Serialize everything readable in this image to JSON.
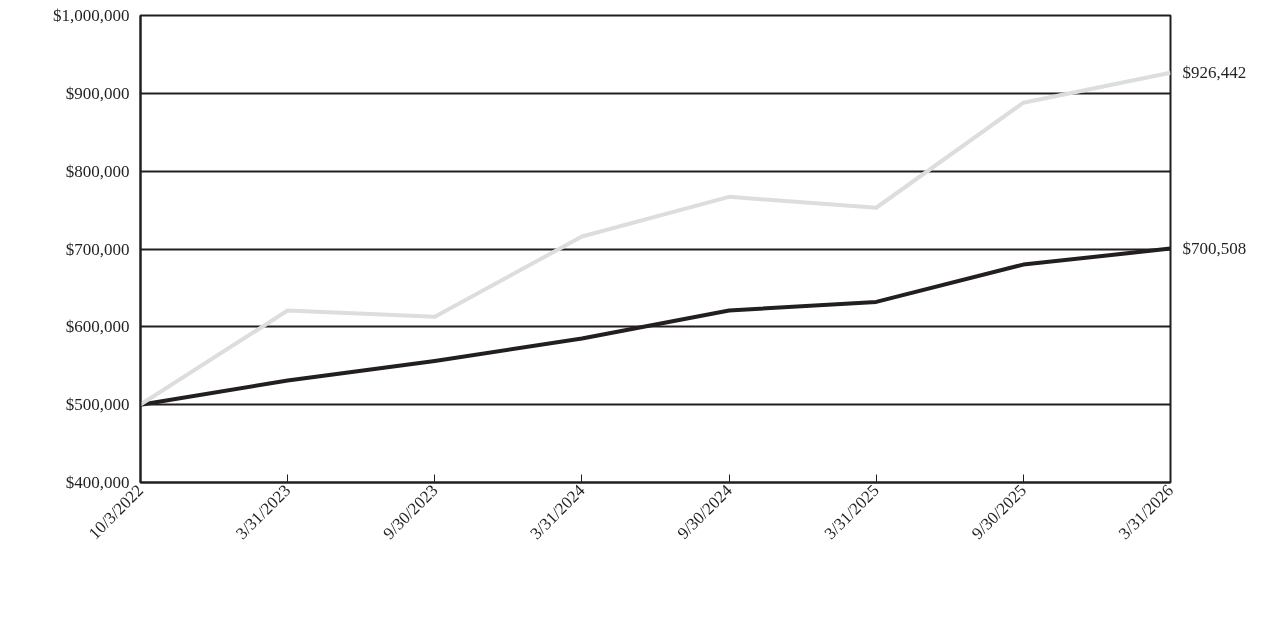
{
  "chart_data": {
    "type": "line",
    "categories": [
      "10/3/2022",
      "3/31/2023",
      "9/30/2023",
      "3/31/2024",
      "9/30/2024",
      "3/31/2025",
      "9/30/2025",
      "3/31/2026"
    ],
    "series": [
      {
        "color": "#231f20",
        "values": [
          500000,
          531000,
          556000,
          585000,
          621000,
          632000,
          680000,
          700508
        ]
      },
      {
        "color": "#dcdddf",
        "values": [
          500000,
          621000,
          613000,
          716000,
          767000,
          753000,
          888000,
          926442
        ]
      }
    ],
    "ylim": [
      400000,
      1000000
    ],
    "yticks": [
      {
        "value": 400000,
        "label": "$400,000"
      },
      {
        "value": 500000,
        "label": "$500,000"
      },
      {
        "value": 600000,
        "label": "$600,000"
      },
      {
        "value": 700000,
        "label": "$700,000"
      },
      {
        "value": 800000,
        "label": "$800,000"
      },
      {
        "value": 900000,
        "label": "$900,000"
      },
      {
        "value": 1000000,
        "label": "$1,000,000"
      }
    ],
    "grid": "y",
    "marker": "none",
    "line_style": "solid",
    "annotations": [
      {
        "text": "$926,442",
        "x": "3/31/2026",
        "y": 926442
      },
      {
        "text": "$700,508",
        "x": "3/31/2026",
        "y": 700508
      }
    ]
  }
}
